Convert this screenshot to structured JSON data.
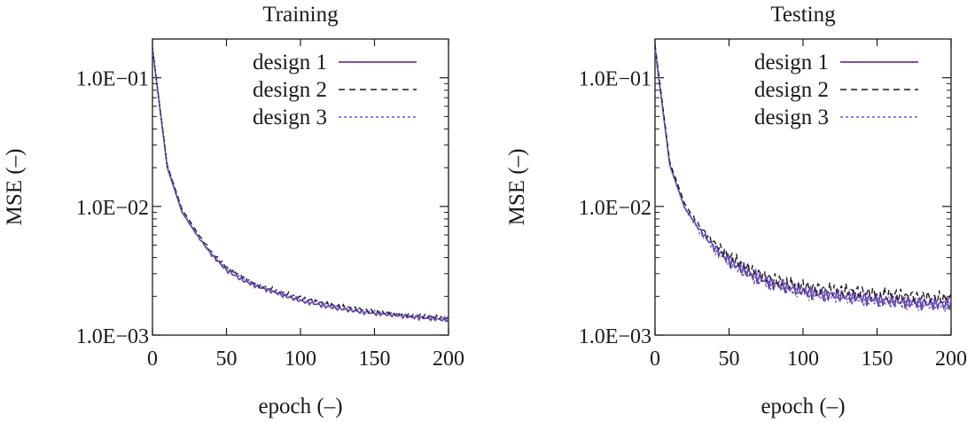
{
  "chart_data": [
    {
      "type": "line",
      "title": "Training",
      "xlabel": "epoch (–)",
      "ylabel": "MSE (–)",
      "xlim": [
        0,
        200
      ],
      "ylim": [
        0.001,
        0.2
      ],
      "yscale": "log",
      "xticks": [
        0,
        50,
        100,
        150,
        200
      ],
      "xtick_labels": [
        "0",
        "50",
        "100",
        "150",
        "200"
      ],
      "yticks": [
        0.001,
        0.01,
        0.1
      ],
      "ytick_labels": [
        "1.0E−03",
        "1.0E−02",
        "1.0E−01"
      ],
      "legend": "top-right",
      "series": [
        {
          "name": "design 1",
          "color": "#6a3d9a",
          "style": "solid",
          "values": [
            0.17,
            0.02,
            0.009,
            0.006,
            0.0042,
            0.0032,
            0.0027,
            0.0024,
            0.0022,
            0.002,
            0.00185,
            0.00175,
            0.00165,
            0.00158,
            0.00152,
            0.00148,
            0.00144,
            0.0014,
            0.00137,
            0.00134,
            0.00131
          ]
        },
        {
          "name": "design 2",
          "color": "#1a1a1a",
          "style": "dashed",
          "values": [
            0.17,
            0.021,
            0.0095,
            0.0063,
            0.0044,
            0.0034,
            0.0029,
            0.0025,
            0.0023,
            0.0021,
            0.00195,
            0.00183,
            0.00172,
            0.00165,
            0.00159,
            0.00154,
            0.00149,
            0.00145,
            0.00142,
            0.00138,
            0.00134
          ]
        },
        {
          "name": "design 3",
          "color": "#5d5bd6",
          "style": "dotted",
          "values": [
            0.165,
            0.0205,
            0.0092,
            0.0061,
            0.0043,
            0.0033,
            0.0028,
            0.00245,
            0.00225,
            0.00205,
            0.0019,
            0.0018,
            0.0017,
            0.0016,
            0.00155,
            0.0015,
            0.00146,
            0.00143,
            0.0014,
            0.00136,
            0.00133
          ]
        }
      ]
    },
    {
      "type": "line",
      "title": "Testing",
      "xlabel": "epoch (–)",
      "ylabel": "MSE (–)",
      "xlim": [
        0,
        200
      ],
      "ylim": [
        0.001,
        0.2
      ],
      "yscale": "log",
      "xticks": [
        0,
        50,
        100,
        150,
        200
      ],
      "xtick_labels": [
        "0",
        "50",
        "100",
        "150",
        "200"
      ],
      "yticks": [
        0.001,
        0.01,
        0.1
      ],
      "ytick_labels": [
        "1.0E−03",
        "1.0E−02",
        "1.0E−01"
      ],
      "legend": "top-right",
      "series": [
        {
          "name": "design 1",
          "color": "#6a3d9a",
          "style": "solid",
          "values": [
            0.17,
            0.021,
            0.0098,
            0.0066,
            0.0048,
            0.0038,
            0.0032,
            0.0028,
            0.0025,
            0.00235,
            0.0022,
            0.0021,
            0.00205,
            0.002,
            0.00195,
            0.00188,
            0.00185,
            0.0018,
            0.00178,
            0.00175,
            0.00172
          ]
        },
        {
          "name": "design 2",
          "color": "#1a1a1a",
          "style": "dashed",
          "values": [
            0.18,
            0.022,
            0.0105,
            0.007,
            0.0052,
            0.0041,
            0.0034,
            0.003,
            0.0027,
            0.0025,
            0.0024,
            0.0023,
            0.00225,
            0.0022,
            0.00215,
            0.0021,
            0.00205,
            0.002,
            0.00198,
            0.00195,
            0.00192
          ]
        },
        {
          "name": "design 3",
          "color": "#5d5bd6",
          "style": "dotted",
          "values": [
            0.165,
            0.0205,
            0.0096,
            0.0064,
            0.0047,
            0.0037,
            0.0031,
            0.0027,
            0.0025,
            0.0023,
            0.00215,
            0.00205,
            0.002,
            0.00195,
            0.0019,
            0.00185,
            0.0018,
            0.00178,
            0.00175,
            0.00172,
            0.0017
          ]
        }
      ]
    }
  ]
}
